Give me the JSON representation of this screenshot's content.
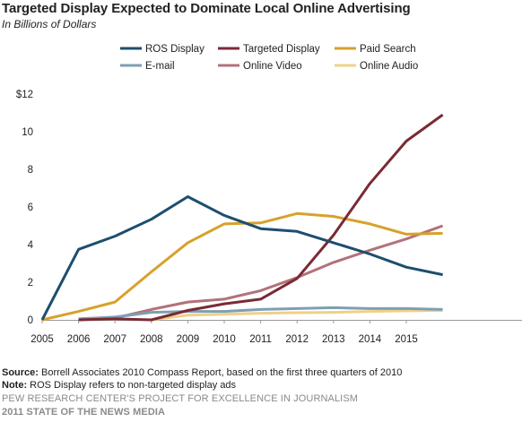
{
  "header": {
    "title": "Targeted Display Expected to Dominate Local Online Advertising",
    "subtitle": "In Billions of Dollars"
  },
  "chart_data": {
    "type": "line",
    "title": "Targeted Display Expected to Dominate Local Online Advertising",
    "subtitle": "In Billions of Dollars",
    "x": [
      "2005",
      "2006",
      "2007",
      "2008",
      "2009",
      "2010",
      "2011",
      "2012",
      "2013",
      "2014",
      "2015",
      "2016"
    ],
    "x_tick_labels": [
      "2005",
      "2006",
      "2007",
      "2008",
      "2009",
      "2010",
      "2011",
      "2012",
      "2013",
      "2014",
      "2015"
    ],
    "y_tick_labels": [
      "0",
      "2",
      "4",
      "6",
      "8",
      "10",
      "$12"
    ],
    "ylim": [
      0,
      12
    ],
    "grid": false,
    "legend_position": "top",
    "series": [
      {
        "name": "ROS Display",
        "color": "#1d4e6e",
        "values": [
          0,
          3.75,
          4.45,
          5.35,
          6.55,
          5.55,
          4.85,
          4.7,
          4.1,
          3.5,
          2.8,
          2.4
        ]
      },
      {
        "name": "Targeted Display",
        "color": "#7a2a35",
        "values": [
          null,
          0,
          0.05,
          0,
          0.5,
          0.85,
          1.1,
          2.2,
          4.5,
          7.25,
          9.5,
          10.9
        ]
      },
      {
        "name": "Paid Search",
        "color": "#d7a12b",
        "values": [
          0,
          0.45,
          0.95,
          2.55,
          4.1,
          5.1,
          5.15,
          5.65,
          5.5,
          5.1,
          4.55,
          4.6
        ]
      },
      {
        "name": "E-mail",
        "color": "#7d9fb4",
        "values": [
          null,
          0.05,
          0.15,
          0.4,
          0.45,
          0.45,
          0.55,
          0.6,
          0.65,
          0.6,
          0.6,
          0.55
        ]
      },
      {
        "name": "Online Video",
        "color": "#b27279",
        "values": [
          null,
          0,
          0.1,
          0.55,
          0.95,
          1.1,
          1.55,
          2.25,
          3.05,
          3.7,
          4.3,
          5.0
        ]
      },
      {
        "name": "Online Audio",
        "color": "#f0d088",
        "values": [
          null,
          null,
          null,
          0,
          0.25,
          0.3,
          0.35,
          0.38,
          0.4,
          0.45,
          0.48,
          0.5
        ]
      }
    ]
  },
  "footer": {
    "source_label": "Source:",
    "source_text": " Borrell Associates 2010 Compass Report, based on the first three quarters of 2010",
    "note_label": "Note:",
    "note_text": " ROS Display refers to non-targeted display ads",
    "org": "PEW RESEARCH CENTER'S PROJECT FOR EXCELLENCE IN JOURNALISM",
    "report": "2011 STATE OF THE NEWS MEDIA"
  }
}
